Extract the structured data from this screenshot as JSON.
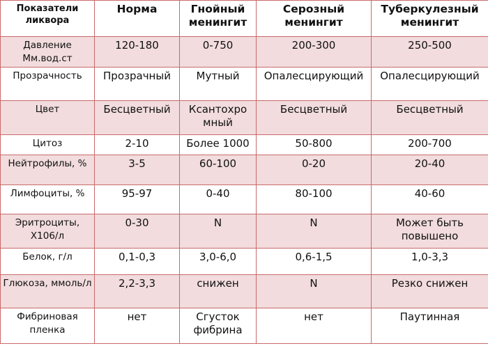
{
  "headers": [
    "Показатели ликвора",
    "Норма",
    "Гнойный менингит",
    "Серозный менингит",
    "Туберкулезный менингит"
  ],
  "rows": [
    {
      "label": "Давление Мм.вод.ст",
      "cells": [
        "120-180",
        "0-750",
        "200-300",
        "250-500"
      ]
    },
    {
      "label": "Прозрачность",
      "cells": [
        "Прозрачный",
        "Мутный",
        "Опалесцирующий",
        "Опалесцирующий"
      ]
    },
    {
      "label": "Цвет",
      "cells": [
        "Бесцветный",
        "Ксантохро мный",
        "Бесцветный",
        "Бесцветный"
      ]
    },
    {
      "label": "Цитоз",
      "cells": [
        "2-10",
        "Более 1000",
        "50-800",
        "200-700"
      ]
    },
    {
      "label": "Нейтрофилы, %",
      "cells": [
        "3-5",
        "60-100",
        "0-20",
        "20-40"
      ]
    },
    {
      "label": "Лимфоциты, %",
      "cells": [
        "95-97",
        "0-40",
        "80-100",
        "40-60"
      ]
    },
    {
      "label": "Эритроциты, Х106/л",
      "cells": [
        "0-30",
        "N",
        "N",
        "Может быть повышено"
      ]
    },
    {
      "label": "Белок, г/л",
      "cells": [
        "0,1-0,3",
        "3,0-6,0",
        "0,6-1,5",
        "1,0-3,3"
      ]
    },
    {
      "label": "Глюкоза, ммоль/л",
      "cells": [
        "2,2-3,3",
        "снижен",
        "N",
        "Резко снижен"
      ]
    },
    {
      "label": "Фибриновая пленка",
      "cells": [
        "нет",
        "Сгусток фибрина",
        "нет",
        "Паутинная"
      ]
    }
  ],
  "colors": {
    "border": "#c9696b",
    "row_shade": "#f2dcdd"
  }
}
